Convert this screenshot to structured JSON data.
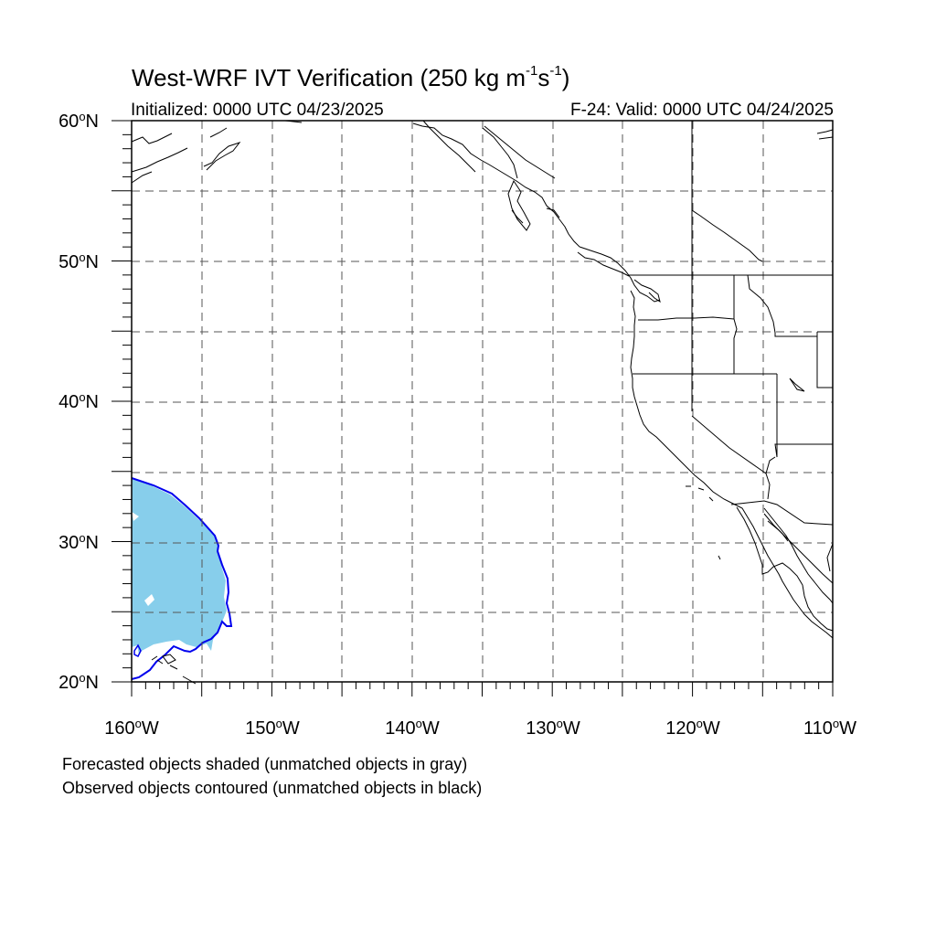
{
  "title": {
    "main": "West-WRF IVT Verification (250 kg m",
    "sup1": "-1",
    "mid": "s",
    "sup2": "-1",
    "end": ")"
  },
  "subtitle_left": "Initialized: 0000 UTC 04/23/2025",
  "subtitle_right": "F-24: Valid: 0000 UTC 04/24/2025",
  "axes": {
    "lat_labels": [
      {
        "value": "60",
        "hemi": "N"
      },
      {
        "value": "50",
        "hemi": "N"
      },
      {
        "value": "40",
        "hemi": "N"
      },
      {
        "value": "30",
        "hemi": "N"
      },
      {
        "value": "20",
        "hemi": "N"
      }
    ],
    "lon_labels": [
      {
        "value": "160",
        "hemi": "W"
      },
      {
        "value": "150",
        "hemi": "W"
      },
      {
        "value": "140",
        "hemi": "W"
      },
      {
        "value": "130",
        "hemi": "W"
      },
      {
        "value": "120",
        "hemi": "W"
      },
      {
        "value": "110",
        "hemi": "W"
      }
    ],
    "degree_symbol": "o",
    "lat_range": [
      20,
      60
    ],
    "lon_range": [
      -160,
      -110
    ],
    "grid_spacing_deg": 5,
    "gridlines": "dashed"
  },
  "legend_notes": [
    "Forecasted objects shaded (unmatched objects in gray)",
    "Observed objects contoured (unmatched objects in black)"
  ],
  "colors": {
    "forecast_fill": "#87ceeb",
    "observed_contour": "#0000ee",
    "coastline": "#000000",
    "grid": "#555555"
  },
  "objects": {
    "forecast_object": {
      "lat_range": [
        20.3,
        34.6
      ],
      "lon_range": [
        -160,
        -153.2
      ]
    },
    "observed_object": {
      "lat_range": [
        20.2,
        34.6
      ],
      "lon_range": [
        -160,
        -153
      ]
    }
  }
}
